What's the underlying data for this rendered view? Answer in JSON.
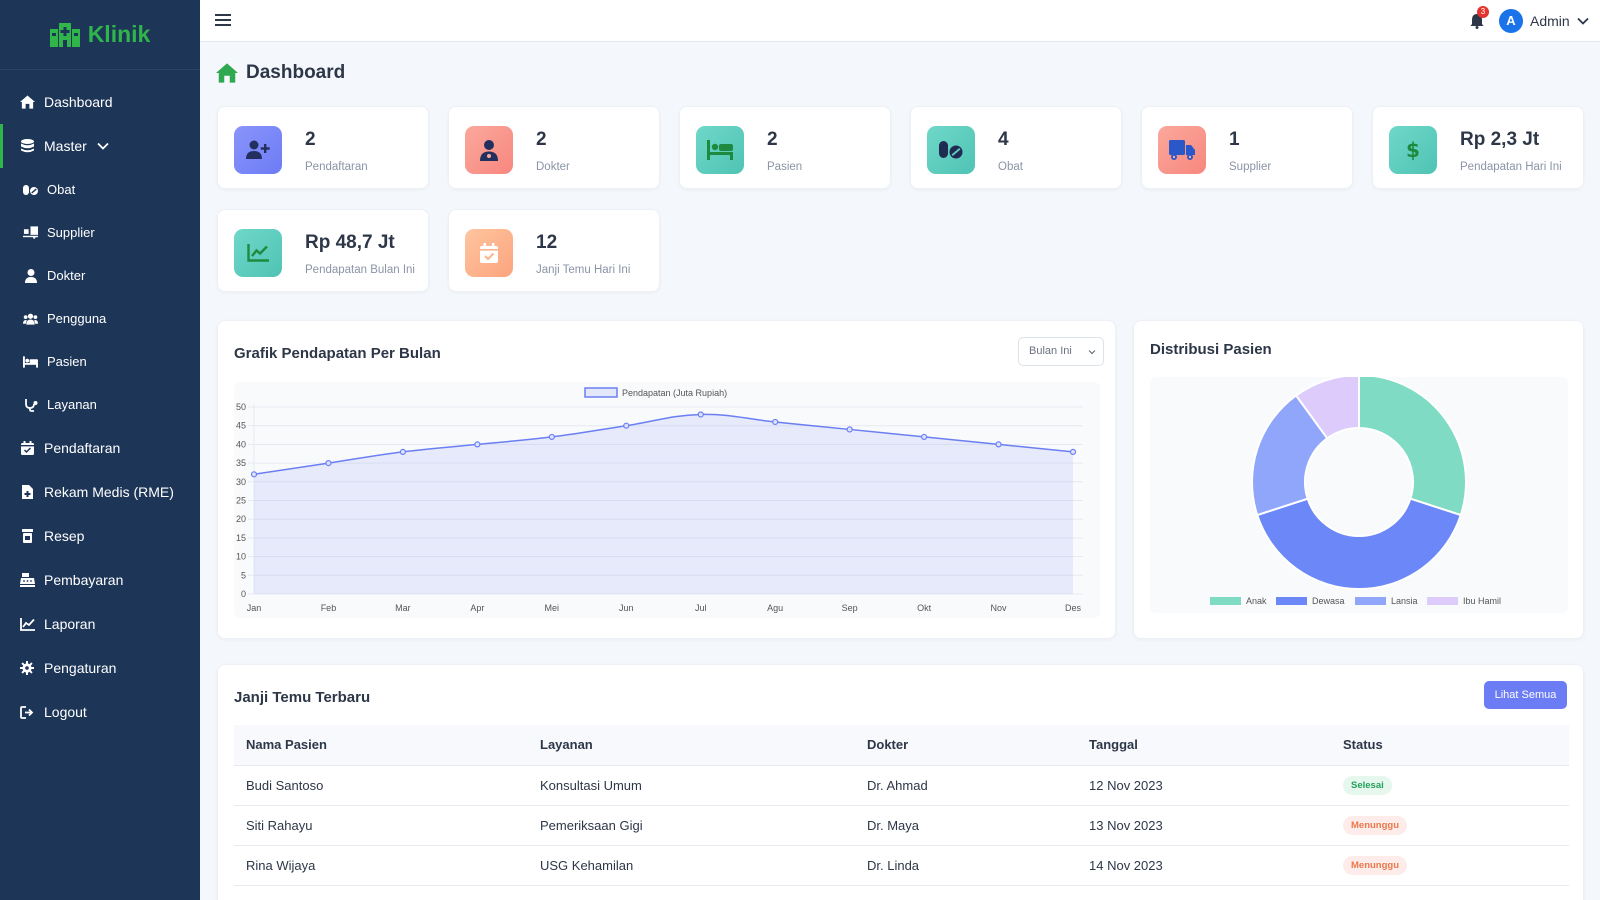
{
  "brand": {
    "name": "Klinik"
  },
  "sidebar": {
    "items": [
      {
        "label": "Dashboard",
        "icon": "home-icon"
      },
      {
        "label": "Master",
        "icon": "database-icon",
        "expanded": true
      },
      {
        "label": "Obat",
        "icon": "pills-icon",
        "sub": true
      },
      {
        "label": "Supplier",
        "icon": "truck-loading-icon",
        "sub": true
      },
      {
        "label": "Dokter",
        "icon": "user-doctor-icon",
        "sub": true
      },
      {
        "label": "Pengguna",
        "icon": "users-icon",
        "sub": true
      },
      {
        "label": "Pasien",
        "icon": "bed-icon",
        "sub": true
      },
      {
        "label": "Layanan",
        "icon": "stethoscope-icon",
        "sub": true
      },
      {
        "label": "Pendaftaran",
        "icon": "calendar-check-icon"
      },
      {
        "label": "Rekam Medis (RME)",
        "icon": "file-medical-icon"
      },
      {
        "label": "Resep",
        "icon": "prescription-bottle-icon"
      },
      {
        "label": "Pembayaran",
        "icon": "cash-register-icon"
      },
      {
        "label": "Laporan",
        "icon": "chart-line-icon"
      },
      {
        "label": "Pengaturan",
        "icon": "gear-icon"
      },
      {
        "label": "Logout",
        "icon": "logout-icon"
      }
    ]
  },
  "topbar": {
    "notification_count": "3",
    "avatar_initial": "A",
    "user_name": "Admin"
  },
  "page": {
    "title": "Dashboard"
  },
  "stats": [
    {
      "value": "2",
      "label": "Pendaftaran",
      "icon": "user-plus-icon",
      "color": "#7b86f7"
    },
    {
      "value": "2",
      "label": "Dokter",
      "icon": "user-doctor-icon",
      "color": "#f9928a"
    },
    {
      "value": "2",
      "label": "Pasien",
      "icon": "bed-icon",
      "color": "#5ccfc0"
    },
    {
      "value": "4",
      "label": "Obat",
      "icon": "pills-icon",
      "color": "#5ccfc0"
    },
    {
      "value": "1",
      "label": "Supplier",
      "icon": "truck-icon",
      "color": "#f9928a"
    },
    {
      "value": "Rp 2,3 Jt",
      "label": "Pendapatan Hari Ini",
      "icon": "dollar-icon",
      "color": "#5ccfc0"
    },
    {
      "value": "Rp 48,7 Jt",
      "label": "Pendapatan Bulan Ini",
      "icon": "chart-line-icon",
      "color": "#5ccfc0"
    },
    {
      "value": "12",
      "label": "Janji Temu Hari Ini",
      "icon": "calendar-check-icon",
      "color": "#fdb38c"
    }
  ],
  "revenue_panel": {
    "title": "Grafik Pendapatan Per Bulan",
    "select_value": "Bulan Ini"
  },
  "distribution_panel": {
    "title": "Distribusi Pasien"
  },
  "chart_data": [
    {
      "type": "line",
      "categories": [
        "Jan",
        "Feb",
        "Mar",
        "Apr",
        "Mei",
        "Jun",
        "Jul",
        "Agu",
        "Sep",
        "Okt",
        "Nov",
        "Des"
      ],
      "series": [
        {
          "name": "Pendapatan (Juta Rupiah)",
          "values": [
            32,
            35,
            38,
            40,
            42,
            45,
            48,
            46,
            44,
            42,
            40,
            38
          ],
          "color": "#6b7ff3"
        }
      ],
      "yticks": [
        0,
        5,
        10,
        15,
        20,
        25,
        30,
        35,
        40,
        45,
        50
      ],
      "ylim": [
        0,
        50
      ],
      "fill": true,
      "grid": true,
      "legend": "top"
    },
    {
      "type": "pie",
      "donut": true,
      "labels": [
        "Anak",
        "Dewasa",
        "Lansia",
        "Ibu Hamil"
      ],
      "values": [
        30,
        40,
        20,
        10
      ],
      "colors": [
        "#7fdbc4",
        "#6c87f7",
        "#8fa6fa",
        "#dccbfb"
      ],
      "legend": "bottom"
    }
  ],
  "appointments": {
    "title": "Janji Temu Terbaru",
    "button_label": "Lihat Semua",
    "columns": [
      "Nama Pasien",
      "Layanan",
      "Dokter",
      "Tanggal",
      "Status"
    ],
    "rows": [
      {
        "name": "Budi Santoso",
        "service": "Konsultasi Umum",
        "doctor": "Dr. Ahmad",
        "date": "12 Nov 2023",
        "status": "Selesai",
        "status_type": "ok"
      },
      {
        "name": "Siti Rahayu",
        "service": "Pemeriksaan Gigi",
        "doctor": "Dr. Maya",
        "date": "13 Nov 2023",
        "status": "Menunggu",
        "status_type": "wait"
      },
      {
        "name": "Rina Wijaya",
        "service": "USG Kehamilan",
        "doctor": "Dr. Linda",
        "date": "14 Nov 2023",
        "status": "Menunggu",
        "status_type": "wait"
      }
    ]
  }
}
